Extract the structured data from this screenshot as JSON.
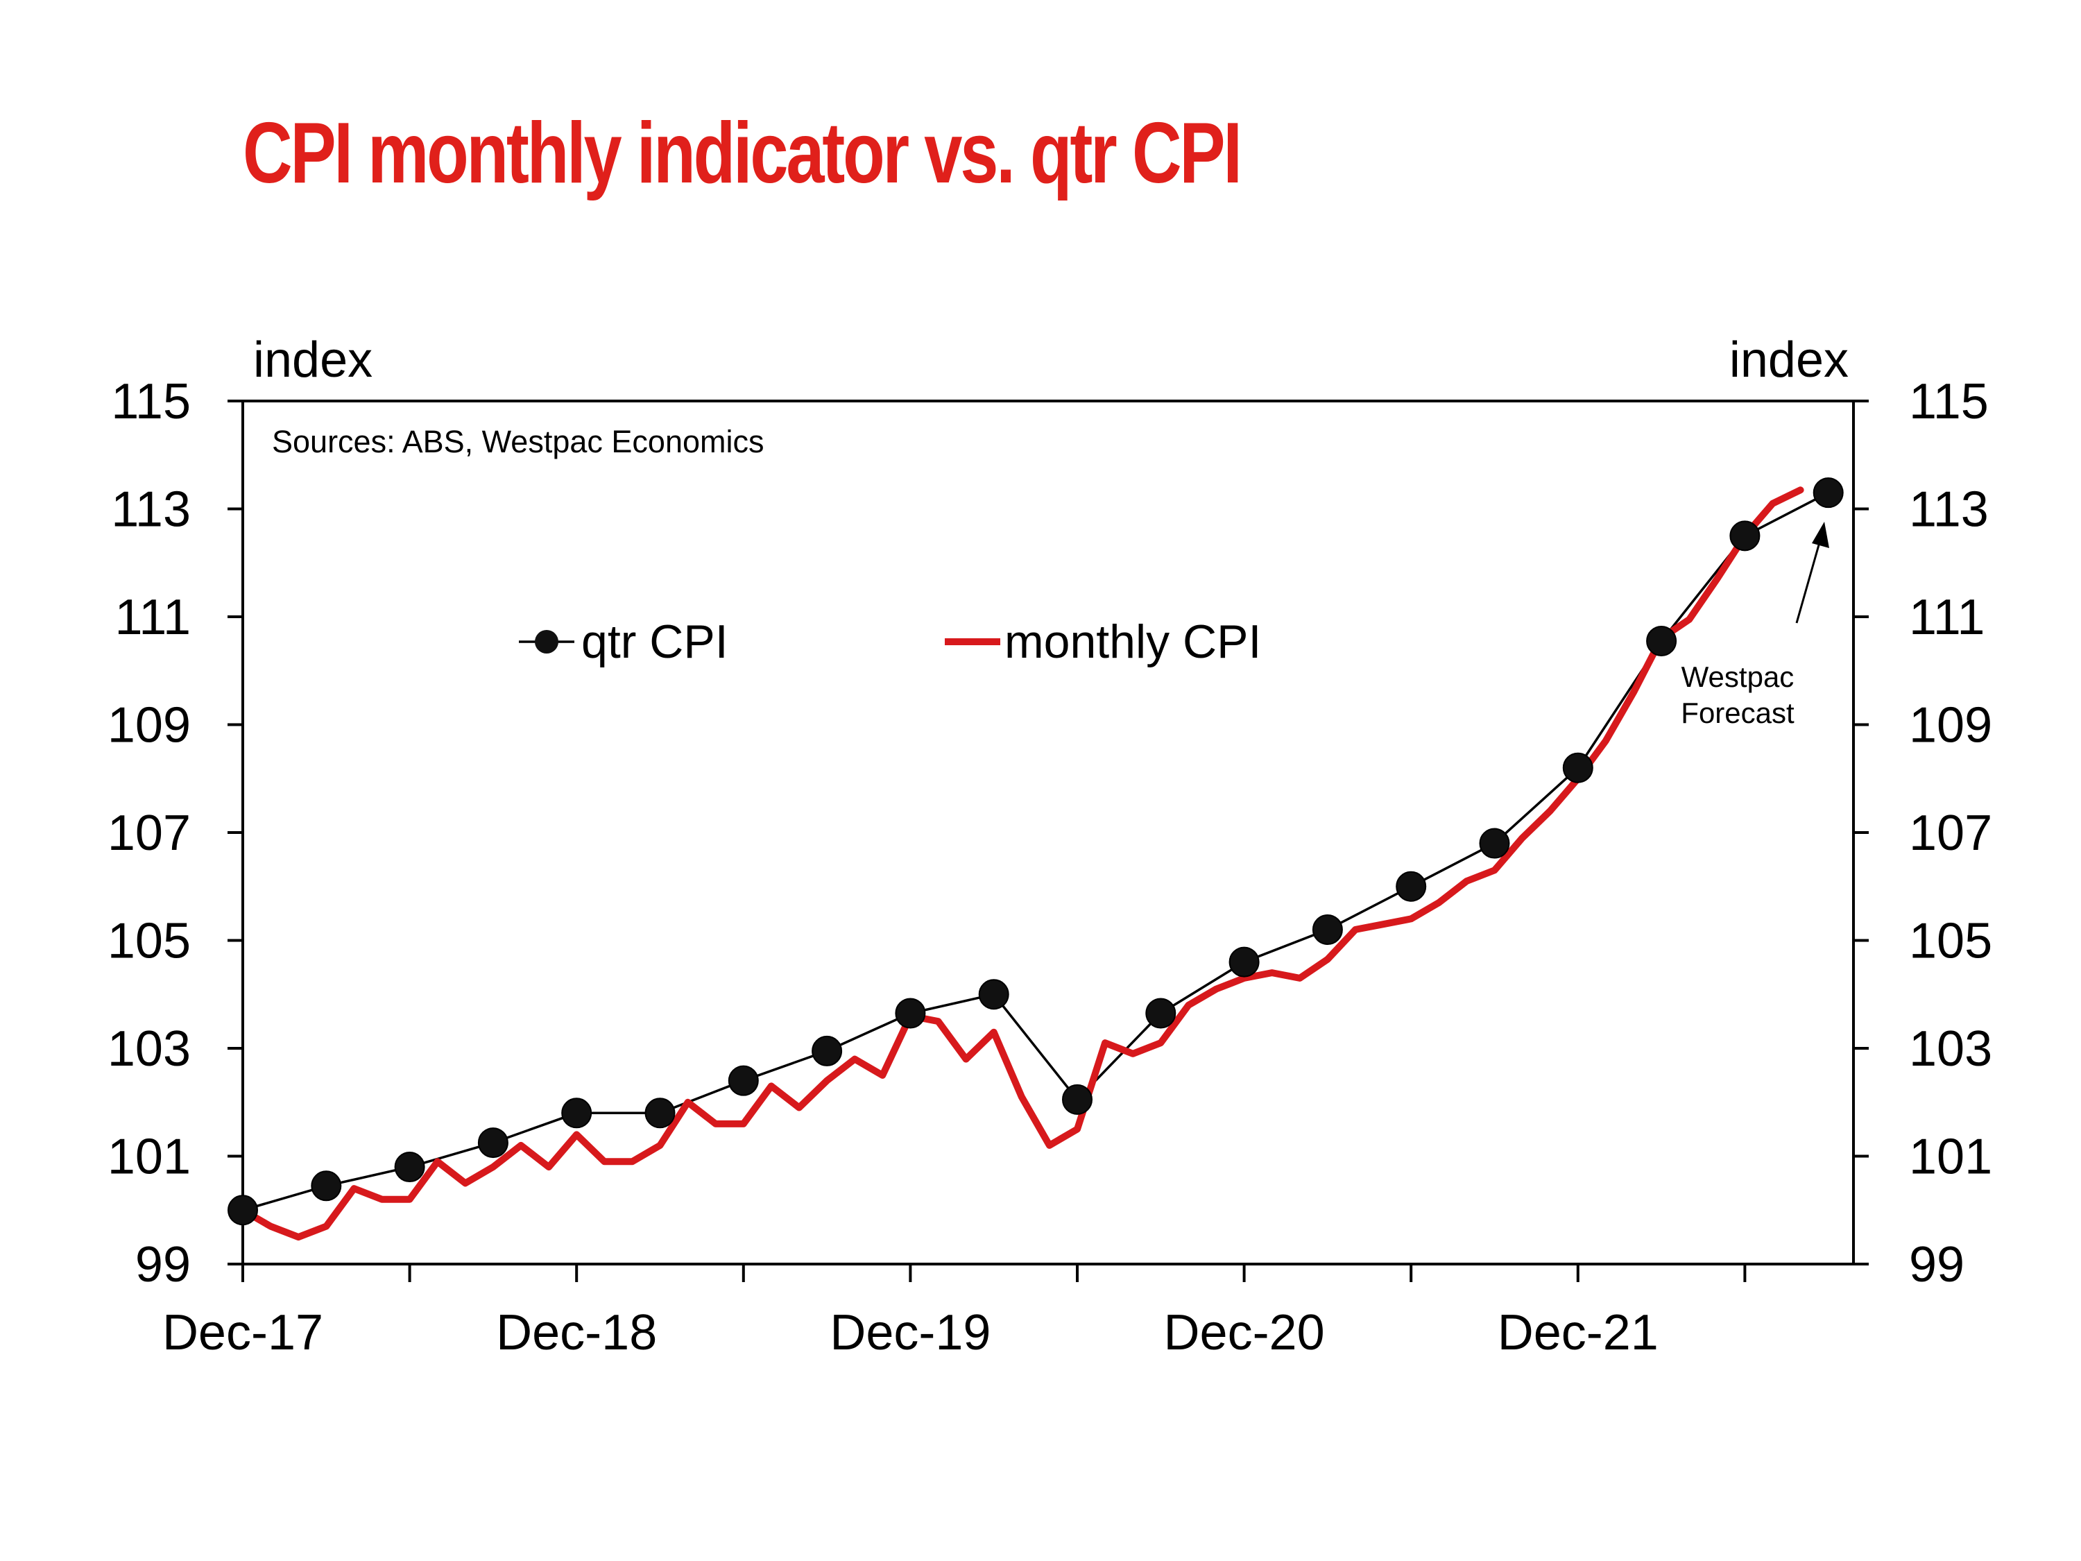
{
  "chart_data": {
    "type": "line",
    "title": "CPI monthly indicator vs. qtr CPI",
    "source": "Sources: ABS, Westpac Economics",
    "ylabel_left": "index",
    "ylabel_right": "index",
    "ylim": [
      99,
      115
    ],
    "yticks": [
      99,
      101,
      103,
      105,
      107,
      109,
      111,
      113,
      115
    ],
    "xticks": [
      "Dec-17",
      "Dec-18",
      "Dec-19",
      "Dec-20",
      "Dec-21"
    ],
    "annotation": "Westpac Forecast",
    "annotation_lines": [
      "Westpac",
      "Forecast"
    ],
    "legend_position": "top-center",
    "series": [
      {
        "name": "qtr CPI",
        "color": "#000000",
        "style": "line-with-dot-markers",
        "x": [
          "Dec-17",
          "Mar-18",
          "Jun-18",
          "Sep-18",
          "Dec-18",
          "Mar-19",
          "Jun-19",
          "Sep-19",
          "Dec-19",
          "Mar-20",
          "Jun-20",
          "Sep-20",
          "Dec-20",
          "Mar-21",
          "Jun-21",
          "Sep-21",
          "Dec-21",
          "Mar-22",
          "Jun-22",
          "Sep-22"
        ],
        "values": [
          100.0,
          100.45,
          100.8,
          101.25,
          101.8,
          101.8,
          102.4,
          102.95,
          103.65,
          104.0,
          102.05,
          103.65,
          104.6,
          105.2,
          106.0,
          106.8,
          108.2,
          110.55,
          112.5,
          113.3
        ]
      },
      {
        "name": "monthly CPI",
        "color": "#d7191c",
        "style": "line",
        "x": [
          "Dec-17",
          "Jan-18",
          "Feb-18",
          "Mar-18",
          "Apr-18",
          "May-18",
          "Jun-18",
          "Jul-18",
          "Aug-18",
          "Sep-18",
          "Oct-18",
          "Nov-18",
          "Dec-18",
          "Jan-19",
          "Feb-19",
          "Mar-19",
          "Apr-19",
          "May-19",
          "Jun-19",
          "Jul-19",
          "Aug-19",
          "Sep-19",
          "Oct-19",
          "Nov-19",
          "Dec-19",
          "Jan-20",
          "Feb-20",
          "Mar-20",
          "Apr-20",
          "May-20",
          "Jun-20",
          "Jul-20",
          "Aug-20",
          "Sep-20",
          "Oct-20",
          "Nov-20",
          "Dec-20",
          "Jan-21",
          "Feb-21",
          "Mar-21",
          "Apr-21",
          "May-21",
          "Jun-21",
          "Jul-21",
          "Aug-21",
          "Sep-21",
          "Oct-21",
          "Nov-21",
          "Dec-21",
          "Jan-22",
          "Feb-22",
          "Mar-22",
          "Apr-22",
          "May-22",
          "Jun-22",
          "Jul-22",
          "Aug-22"
        ],
        "values": [
          100.0,
          99.7,
          99.5,
          99.7,
          100.4,
          100.2,
          100.2,
          100.9,
          100.5,
          100.8,
          101.2,
          100.8,
          101.4,
          100.9,
          100.9,
          101.2,
          102.0,
          101.6,
          101.6,
          102.3,
          101.9,
          102.4,
          102.8,
          102.5,
          103.6,
          103.5,
          102.8,
          103.3,
          102.1,
          101.2,
          101.5,
          103.1,
          102.9,
          103.1,
          103.8,
          104.1,
          104.3,
          104.4,
          104.3,
          104.65,
          105.2,
          105.3,
          105.4,
          105.7,
          106.1,
          106.3,
          106.9,
          107.4,
          108.0,
          108.7,
          109.6,
          110.6,
          110.95,
          111.7,
          112.5,
          113.1,
          113.35
        ]
      }
    ]
  }
}
